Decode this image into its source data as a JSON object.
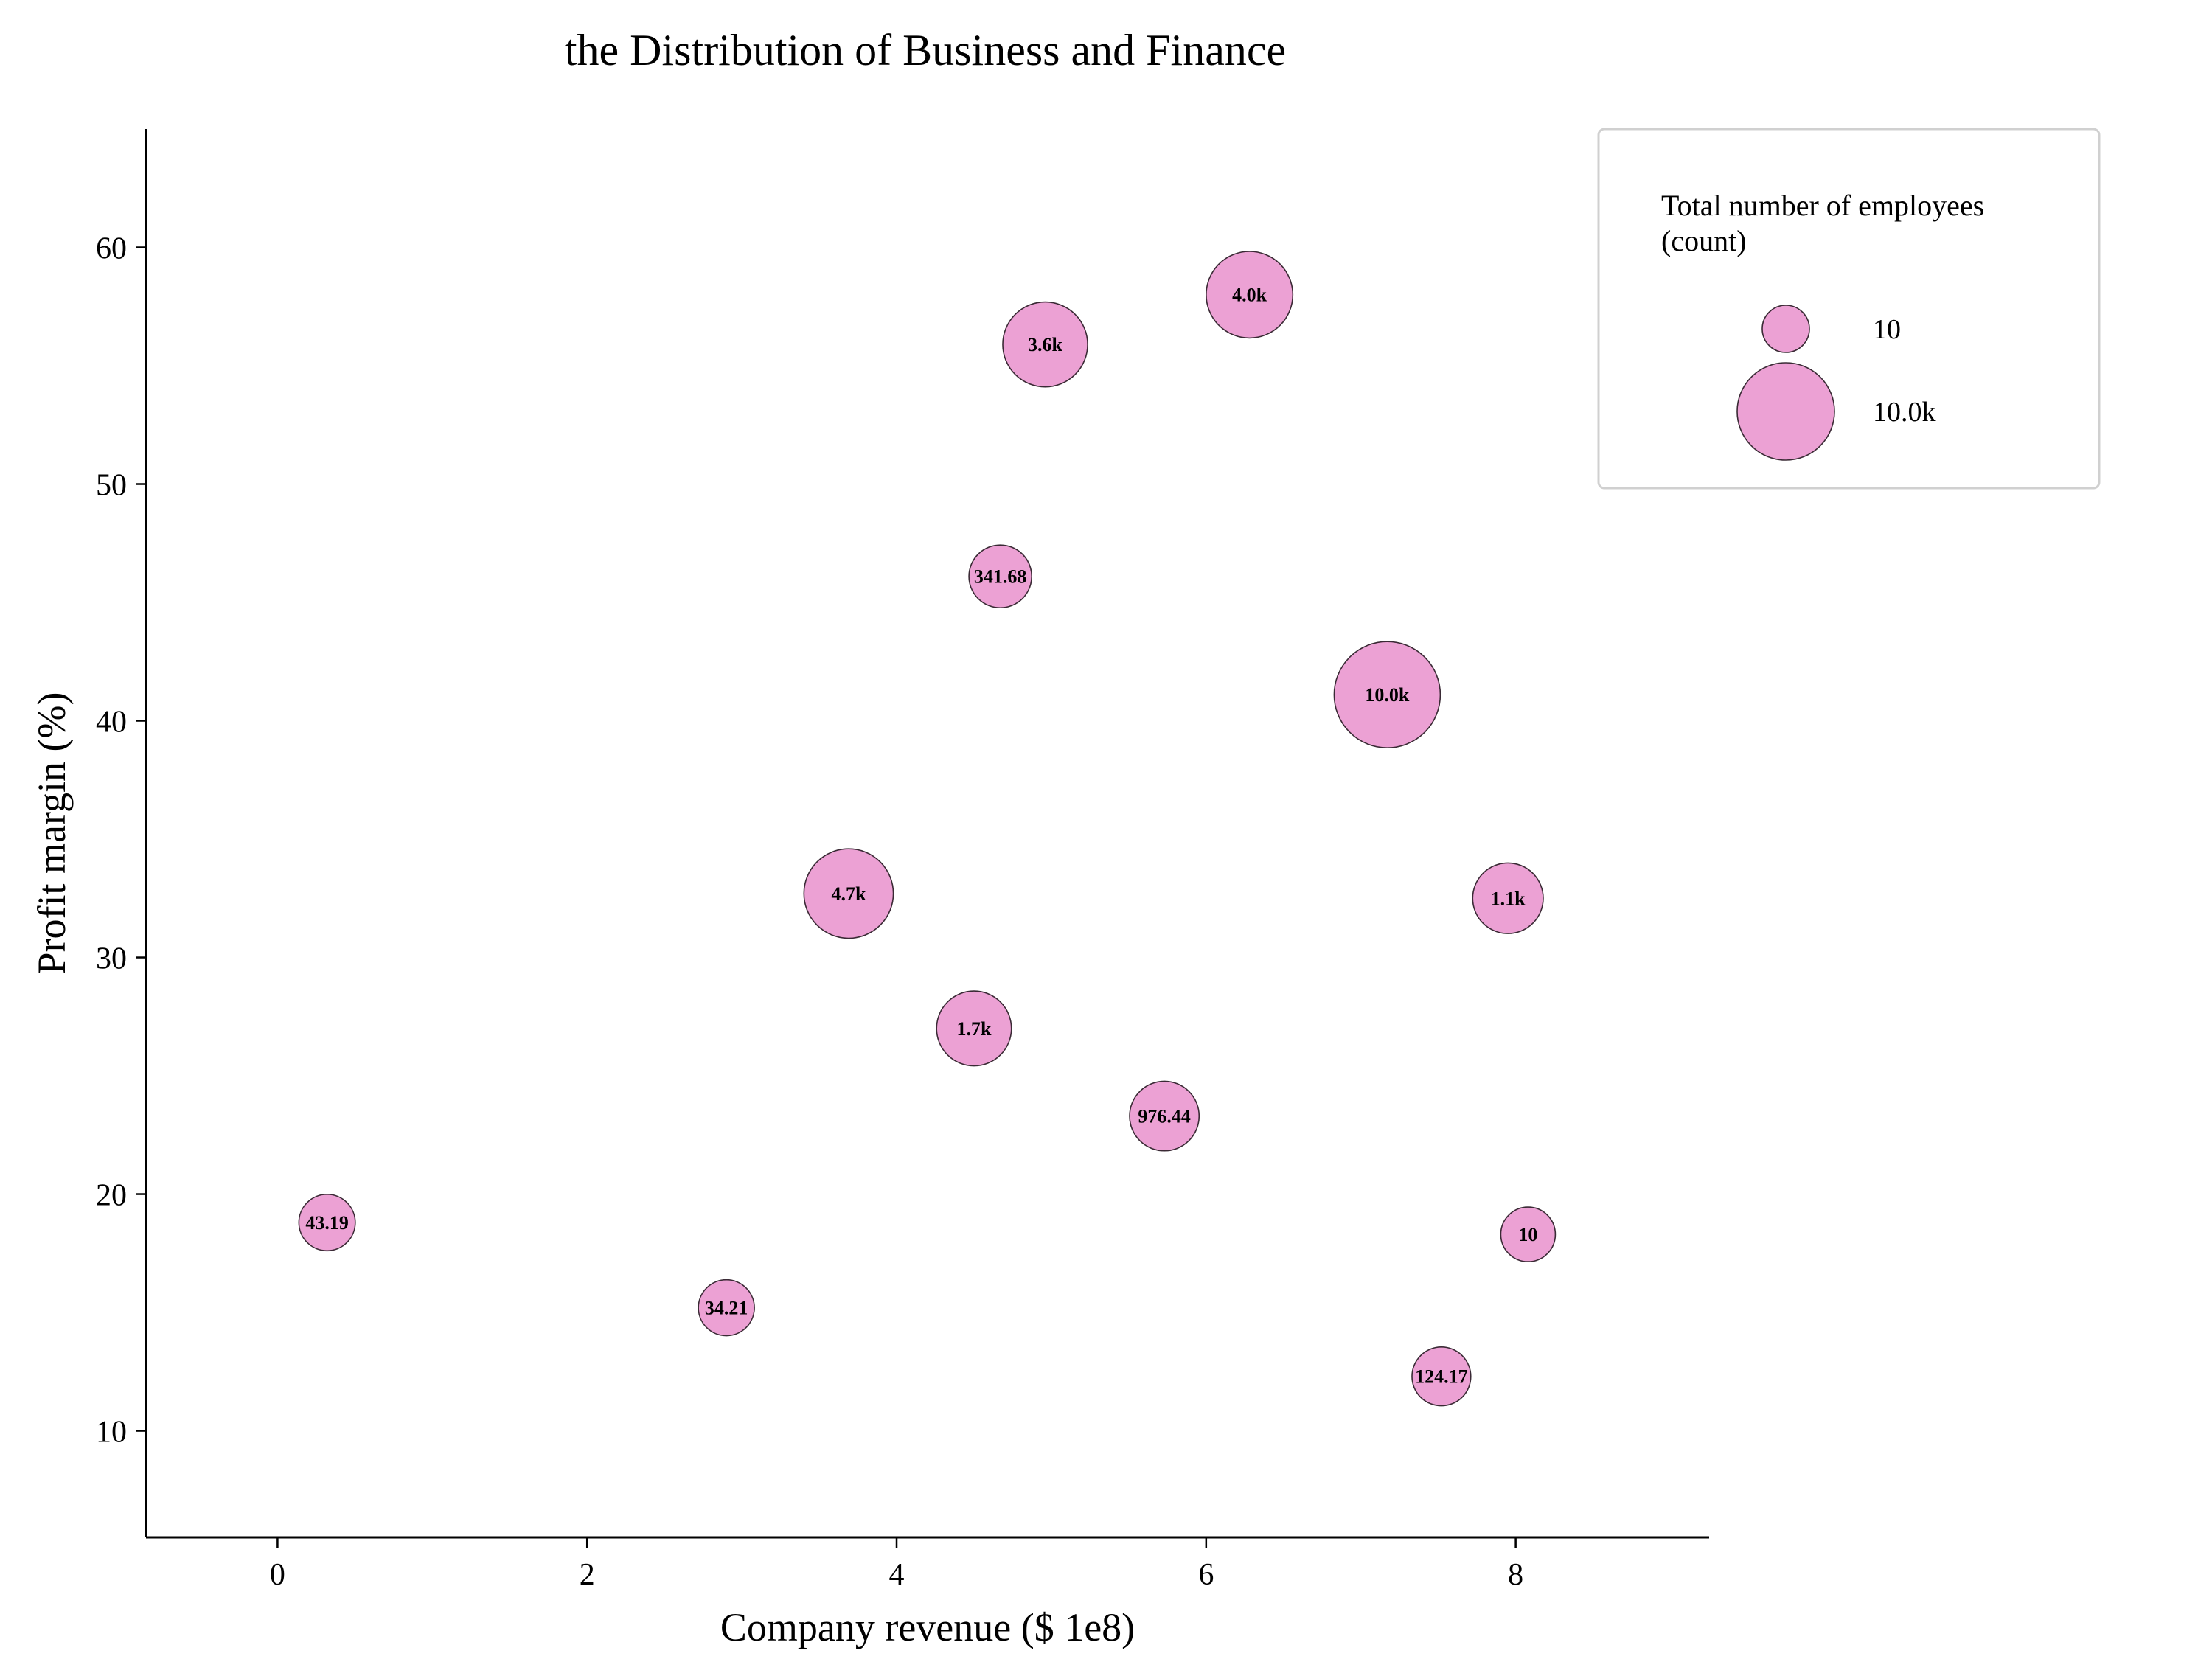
{
  "chart_data": {
    "type": "scatter",
    "title": "the Distribution of Business and Finance",
    "xlabel": "Company revenue ($ 1e8)",
    "ylabel": "Profit margin (%)",
    "xlim": [
      -0.85,
      9.25
    ],
    "ylim": [
      5.5,
      65
    ],
    "xticks": [
      0,
      2,
      4,
      6,
      8
    ],
    "yticks": [
      10,
      20,
      30,
      40,
      50,
      60
    ],
    "grid": false,
    "legend_position": "top-right",
    "bubble_color": "#eca1d4",
    "edge_color": "#3a2a35",
    "size_legend": {
      "title": "Total number of employees\n(count)",
      "entries": [
        {
          "label": "10",
          "value": 10
        },
        {
          "label": "10.0k",
          "value": 10000
        }
      ]
    },
    "points": [
      {
        "x": 0.32,
        "y": 18.8,
        "size": 43.19,
        "label": "43.19"
      },
      {
        "x": 2.9,
        "y": 15.2,
        "size": 34.21,
        "label": "34.21"
      },
      {
        "x": 3.69,
        "y": 32.7,
        "size": 4700,
        "label": "4.7k"
      },
      {
        "x": 4.5,
        "y": 27.0,
        "size": 1700,
        "label": "1.7k"
      },
      {
        "x": 4.67,
        "y": 46.1,
        "size": 341.68,
        "label": "341.68"
      },
      {
        "x": 4.96,
        "y": 55.9,
        "size": 3600,
        "label": "3.6k"
      },
      {
        "x": 5.73,
        "y": 23.3,
        "size": 976.44,
        "label": "976.44"
      },
      {
        "x": 6.28,
        "y": 58.0,
        "size": 4000,
        "label": "4.0k"
      },
      {
        "x": 7.17,
        "y": 41.1,
        "size": 10000,
        "label": "10.0k"
      },
      {
        "x": 7.52,
        "y": 12.3,
        "size": 124.17,
        "label": "124.17"
      },
      {
        "x": 7.95,
        "y": 32.5,
        "size": 1100,
        "label": "1.1k"
      },
      {
        "x": 8.08,
        "y": 18.3,
        "size": 10,
        "label": "10"
      }
    ]
  }
}
